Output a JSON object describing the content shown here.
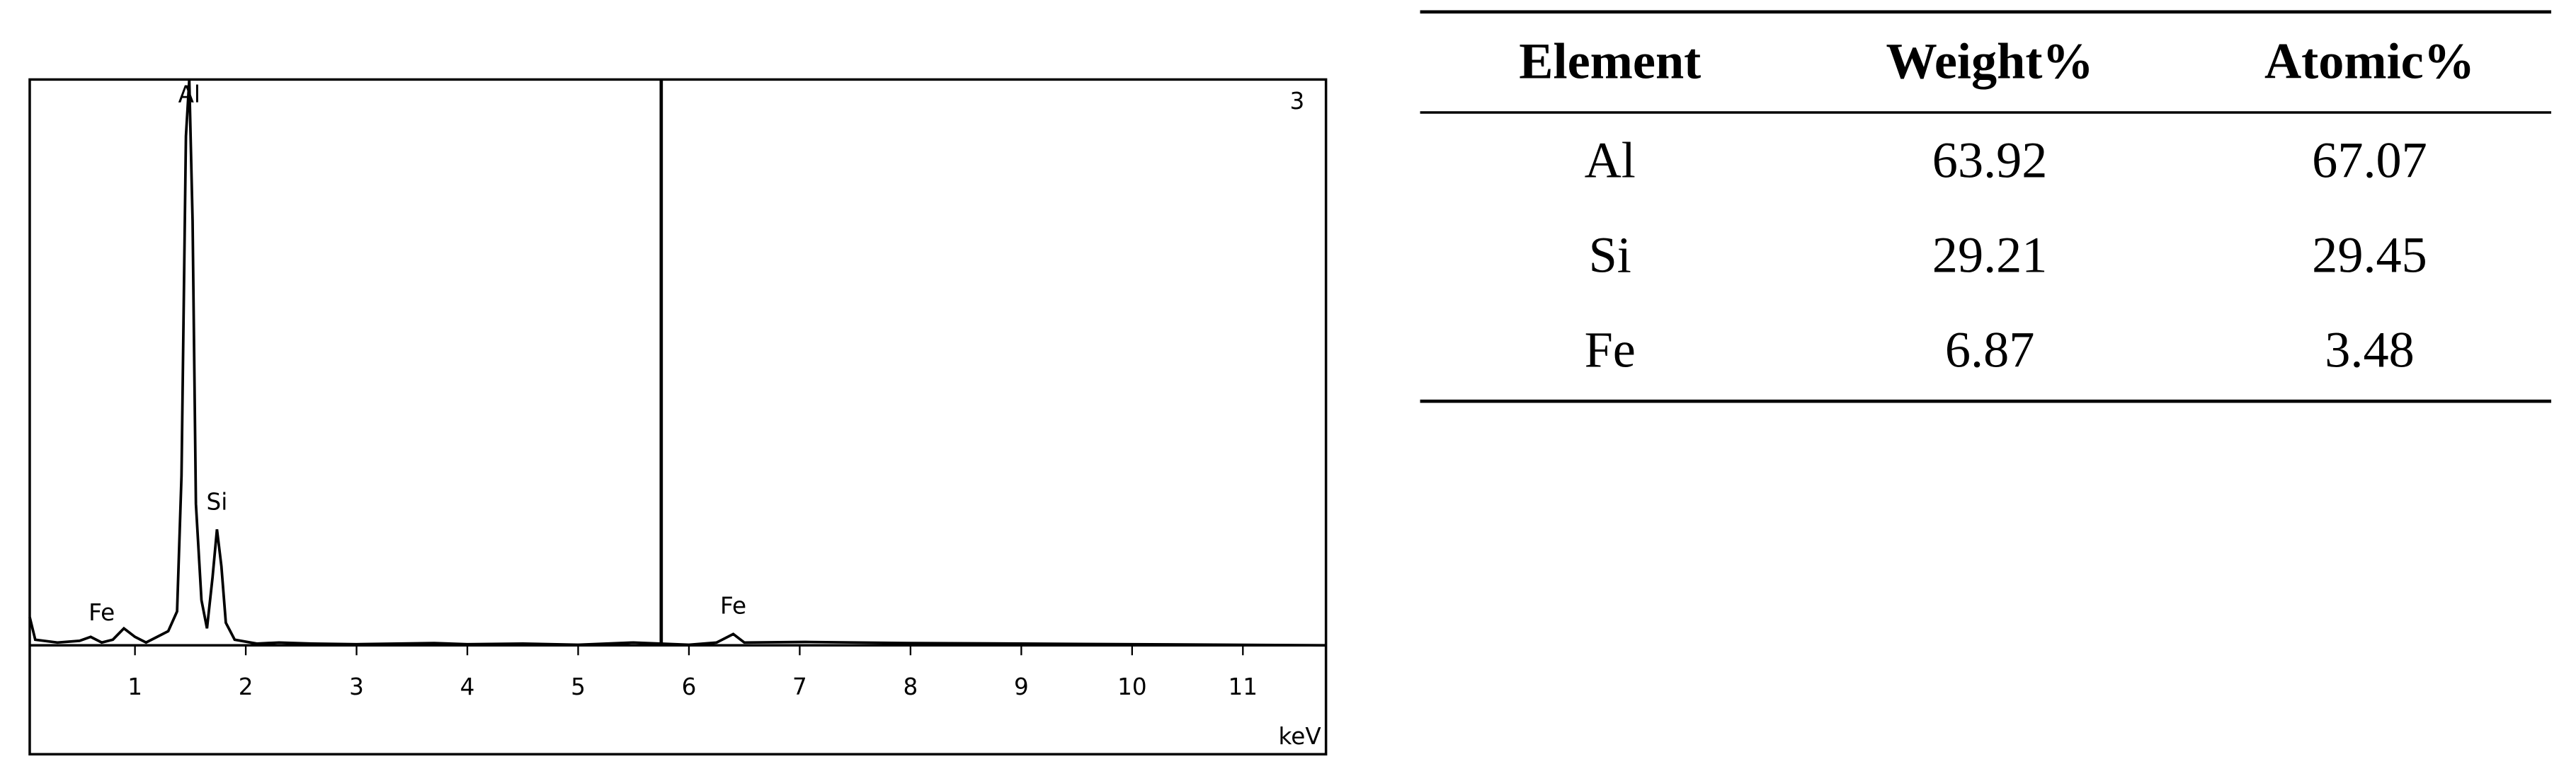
{
  "chart_data": {
    "type": "line",
    "x_unit_label": "keV",
    "corner_label": "3",
    "xlim": [
      0.05,
      11.75
    ],
    "ylim": [
      0,
      100
    ],
    "xticks": [
      1,
      2,
      3,
      4,
      5,
      6,
      7,
      8,
      9,
      10,
      11
    ],
    "marker_x": 5.75,
    "annotations": [
      {
        "text": "Al",
        "x": 1.49
      },
      {
        "text": "Si",
        "x": 1.74
      },
      {
        "text": "Fe",
        "x": 0.7
      },
      {
        "text": "Fe",
        "x": 6.4
      }
    ],
    "series": [
      {
        "color": "#000000",
        "x": [
          0.05,
          0.1,
          0.3,
          0.5,
          0.6,
          0.7,
          0.8,
          0.9,
          1.0,
          1.1,
          1.2,
          1.3,
          1.38,
          1.42,
          1.46,
          1.49,
          1.52,
          1.55,
          1.6,
          1.65,
          1.7,
          1.74,
          1.78,
          1.82,
          1.9,
          2.1,
          2.3,
          2.6,
          3.0,
          3.7,
          4.0,
          4.5,
          5.0,
          5.5,
          6.0,
          6.25,
          6.4,
          6.5,
          7.05,
          8,
          9,
          10,
          11.75
        ],
        "values": [
          5,
          1,
          0.5,
          0.8,
          1.5,
          0.5,
          1,
          3,
          1.5,
          0.5,
          1.5,
          2.5,
          6,
          30,
          90,
          100,
          75,
          25,
          8,
          3,
          12,
          20.5,
          14,
          4,
          1,
          0.3,
          0.5,
          0.3,
          0.2,
          0.4,
          0.2,
          0.3,
          0.1,
          0.5,
          0.1,
          0.5,
          2,
          0.5,
          0.6,
          0.4,
          0.3,
          0.2,
          0
        ]
      }
    ]
  },
  "table": {
    "columns": [
      "Element",
      "Weight%",
      "Atomic%"
    ],
    "rows": [
      [
        "Al",
        "63.92",
        "67.07"
      ],
      [
        "Si",
        "29.21",
        "29.45"
      ],
      [
        "Fe",
        "6.87",
        "3.48"
      ]
    ]
  }
}
